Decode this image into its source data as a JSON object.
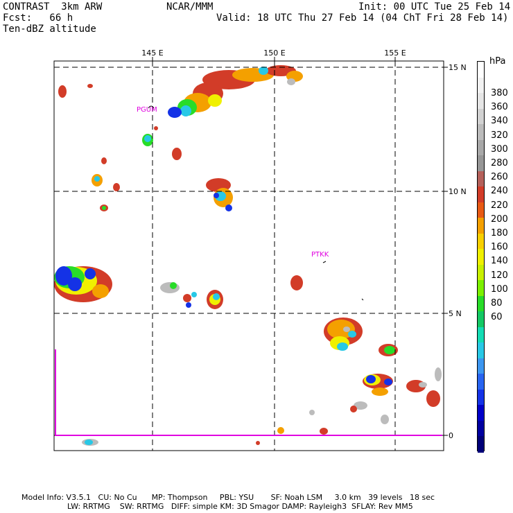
{
  "header": {
    "model": "CONTRAST  3km ARW",
    "center": "NCAR/MMM",
    "init": "Init: 00 UTC Tue 25 Feb 14",
    "fcst": "Fcst:   66 h",
    "valid": "Valid: 18 UTC Thu 27 Feb 14 (04 ChT Fri 28 Feb 14)",
    "field": "Ten-dBZ altitude"
  },
  "map": {
    "lon_labels": [
      "145 E",
      "150 E",
      "155 E"
    ],
    "lat_labels": [
      "15 N",
      "10 N",
      "5 N",
      "0"
    ],
    "stations": [
      {
        "id": "PGUM",
        "label": "PGUM"
      },
      {
        "id": "PTKK",
        "label": "PTKK"
      }
    ],
    "label_color": "#e000e0"
  },
  "colorbar": {
    "unit": "hPa",
    "tick_labels": [
      "380",
      "360",
      "340",
      "320",
      "300",
      "280",
      "260",
      "240",
      "220",
      "200",
      "180",
      "160",
      "140",
      "120",
      "100",
      "80",
      "60"
    ],
    "colors": [
      "#ffffff",
      "#f2f2f2",
      "#e6e6e6",
      "#d2d2d2",
      "#bcbcbc",
      "#a8a8a8",
      "#969696",
      "#b4605a",
      "#d23c28",
      "#e85a14",
      "#f4a000",
      "#f8d000",
      "#f0f000",
      "#c8f000",
      "#7cf000",
      "#28dc28",
      "#14c864",
      "#14dcb4",
      "#28c8e6",
      "#3c96f0",
      "#2864f0",
      "#1432e6",
      "#0000c8",
      "#0000a0",
      "#000078"
    ],
    "levels": [
      400,
      390,
      380,
      370,
      360,
      350,
      340,
      330,
      320,
      310,
      300,
      290,
      280,
      270,
      260,
      250,
      240,
      230,
      220,
      210,
      200,
      190,
      180,
      170,
      160,
      150,
      140,
      130,
      120,
      110,
      100,
      90,
      80,
      70,
      60,
      50
    ]
  },
  "footer": {
    "line1": "Model Info: V3.5.1   CU: No Cu      MP: Thompson     PBL: YSU       SF: Noah LSM     3.0 km   39 levels   18 sec",
    "line2": "LW: RRTMG    SW: RRTMG   DIFF: simple KM: 3D Smagor DAMP: Rayleigh3  SFLAY: Rev MM5"
  }
}
